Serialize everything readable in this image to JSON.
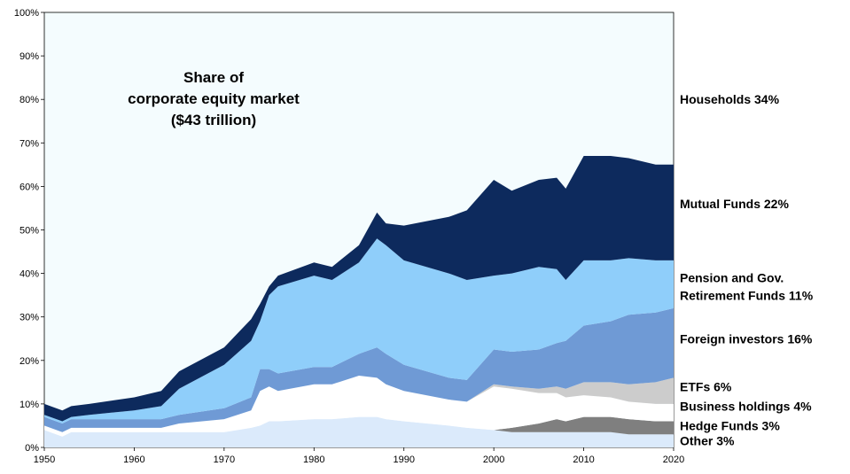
{
  "chart_data": {
    "type": "area",
    "title_lines": [
      "Share of",
      "corporate equity market",
      "($43 trillion)"
    ],
    "xlim": [
      1950,
      2020
    ],
    "ylim": [
      0,
      100
    ],
    "x_ticks": [
      1950,
      1960,
      1970,
      1980,
      1990,
      2000,
      2010,
      2020
    ],
    "y_ticks": [
      "0%",
      "10%",
      "20%",
      "30%",
      "40%",
      "50%",
      "60%",
      "70%",
      "80%",
      "90%",
      "100%"
    ],
    "background_color": "#f4fcfe",
    "x": [
      1950,
      1952,
      1953,
      1955,
      1960,
      1963,
      1965,
      1970,
      1973,
      1974,
      1975,
      1976,
      1980,
      1982,
      1985,
      1987,
      1988,
      1990,
      1995,
      1997,
      2000,
      2002,
      2005,
      2007,
      2008,
      2010,
      2013,
      2015,
      2018,
      2020
    ],
    "series": [
      {
        "name": "Other 3%",
        "color": "#dbeafb",
        "values": [
          4,
          2.5,
          3.5,
          3.5,
          3.5,
          3.5,
          3.5,
          3.5,
          4.5,
          5,
          6,
          6,
          6.5,
          6.5,
          7,
          7,
          6.5,
          6,
          5,
          4.5,
          4,
          3.5,
          3.5,
          3.5,
          3.5,
          3.5,
          3.5,
          3,
          3,
          3
        ]
      },
      {
        "name": "Hedge Funds 3%",
        "color": "#7f7f7f",
        "values": [
          0,
          0,
          0,
          0,
          0,
          0,
          0,
          0,
          0,
          0,
          0,
          0,
          0,
          0,
          0,
          0,
          0,
          0,
          0,
          0,
          0,
          1,
          2,
          3,
          2.5,
          3.5,
          3.5,
          3.5,
          3,
          3
        ]
      },
      {
        "name": "Business holdings 4%",
        "color": "#ffffff",
        "values": [
          1,
          1,
          1,
          1,
          1,
          1,
          2,
          3,
          4,
          8,
          8,
          7,
          8,
          8,
          9.5,
          9,
          8,
          7,
          6,
          6,
          10,
          9,
          7,
          6,
          5.5,
          5,
          4.5,
          4,
          4,
          4
        ]
      },
      {
        "name": "ETFs 6%",
        "color": "#cccccc",
        "values": [
          0,
          0,
          0,
          0,
          0,
          0,
          0,
          0,
          0,
          0,
          0,
          0,
          0,
          0,
          0,
          0,
          0,
          0,
          0,
          0,
          0.5,
          0.5,
          1,
          1.5,
          2,
          3,
          3.5,
          4,
          5,
          6
        ]
      },
      {
        "name": "Foreign investors 16%",
        "color": "#6f9ad5",
        "values": [
          2,
          2,
          2,
          2,
          2,
          2,
          2,
          2.5,
          3,
          5,
          4,
          4,
          4,
          4,
          5,
          7,
          7,
          6,
          5,
          5,
          8,
          8,
          9,
          10,
          11,
          13,
          14,
          16,
          16,
          16
        ]
      },
      {
        "name": "Pension and Gov. Retirement Funds 11%",
        "color": "#8fcefa",
        "values": [
          0.5,
          0.5,
          0.5,
          1,
          2,
          3,
          6,
          10,
          13,
          11,
          17,
          20,
          21,
          20,
          21,
          25,
          25,
          24,
          24,
          23,
          17,
          18,
          19,
          17,
          14,
          15,
          14,
          13,
          12,
          11
        ]
      },
      {
        "name": "Mutual Funds 22%",
        "color": "#0d2a5d",
        "values": [
          2.5,
          2.5,
          2.5,
          2.5,
          3,
          3.5,
          4,
          4,
          5,
          4,
          2,
          2.5,
          3,
          3,
          4,
          6,
          5,
          8,
          13,
          16,
          22,
          19,
          20,
          21,
          21,
          24,
          24,
          23,
          22,
          22
        ]
      }
    ],
    "right_labels": [
      {
        "lines": [
          "Households 34%"
        ],
        "value": 80
      },
      {
        "lines": [
          "Mutual Funds 22%"
        ],
        "value": 56
      },
      {
        "lines": [
          "Pension and Gov.",
          "Retirement Funds 11%"
        ],
        "value": 37
      },
      {
        "lines": [
          "Foreign investors 16%"
        ],
        "value": 25
      },
      {
        "lines": [
          "ETFs 6%"
        ],
        "value": 14
      },
      {
        "lines": [
          "Business holdings 4%"
        ],
        "value": 9.5
      },
      {
        "lines": [
          "Hedge Funds 3%"
        ],
        "value": 5
      },
      {
        "lines": [
          "Other 3%"
        ],
        "value": 1.5
      }
    ]
  }
}
